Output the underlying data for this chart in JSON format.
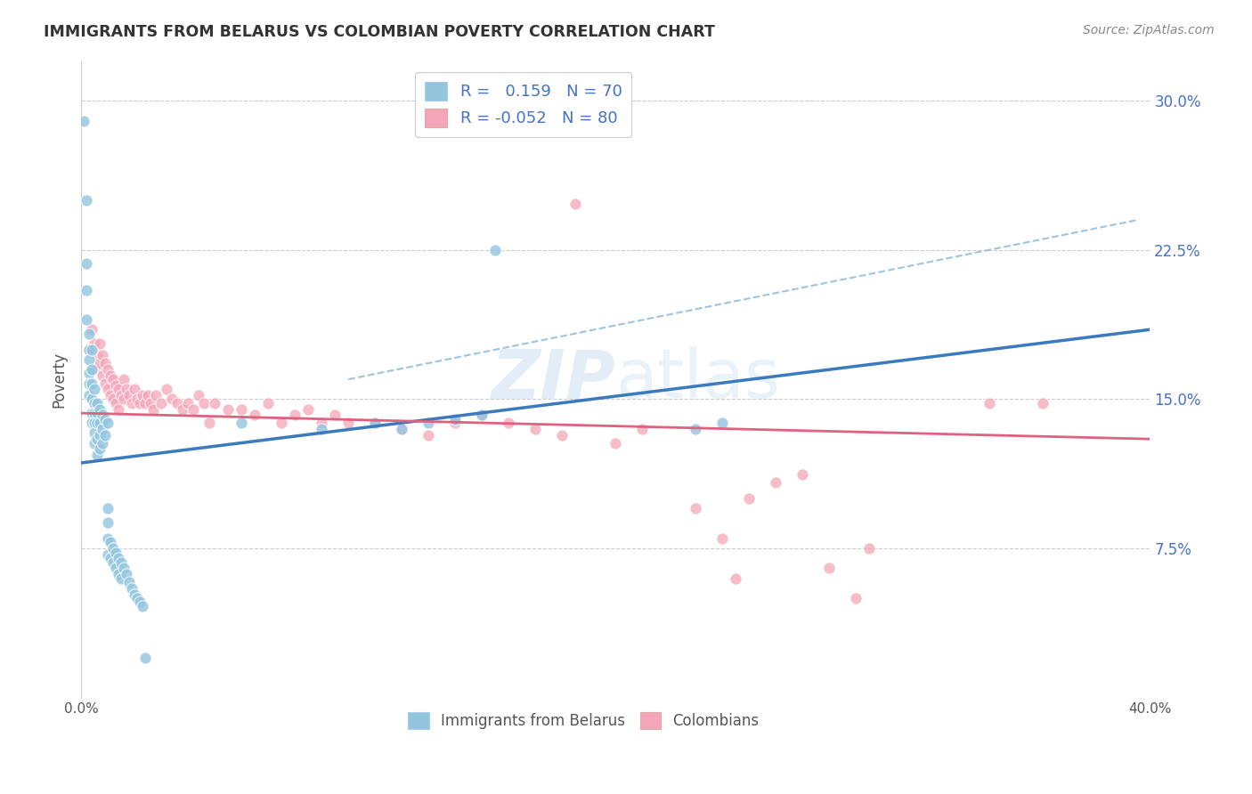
{
  "title": "IMMIGRANTS FROM BELARUS VS COLOMBIAN POVERTY CORRELATION CHART",
  "source": "Source: ZipAtlas.com",
  "ylabel": "Poverty",
  "yticks": [
    "7.5%",
    "15.0%",
    "22.5%",
    "30.0%"
  ],
  "ytick_vals": [
    0.075,
    0.15,
    0.225,
    0.3
  ],
  "xlim": [
    0.0,
    0.4
  ],
  "ylim": [
    0.0,
    0.32
  ],
  "color_blue": "#92c5de",
  "color_pink": "#f4a6b8",
  "line_blue": "#3a7abf",
  "line_pink": "#e06080",
  "line_dash_blue": "#9fc4e0",
  "watermark_zip": "ZIP",
  "watermark_atlas": "atlas",
  "belarus_dots": [
    [
      0.001,
      0.29
    ],
    [
      0.002,
      0.25
    ],
    [
      0.002,
      0.218
    ],
    [
      0.002,
      0.205
    ],
    [
      0.002,
      0.19
    ],
    [
      0.003,
      0.183
    ],
    [
      0.003,
      0.175
    ],
    [
      0.003,
      0.17
    ],
    [
      0.003,
      0.163
    ],
    [
      0.003,
      0.158
    ],
    [
      0.003,
      0.152
    ],
    [
      0.004,
      0.175
    ],
    [
      0.004,
      0.165
    ],
    [
      0.004,
      0.158
    ],
    [
      0.004,
      0.15
    ],
    [
      0.004,
      0.143
    ],
    [
      0.004,
      0.138
    ],
    [
      0.005,
      0.155
    ],
    [
      0.005,
      0.148
    ],
    [
      0.005,
      0.143
    ],
    [
      0.005,
      0.138
    ],
    [
      0.005,
      0.133
    ],
    [
      0.005,
      0.128
    ],
    [
      0.006,
      0.148
    ],
    [
      0.006,
      0.143
    ],
    [
      0.006,
      0.138
    ],
    [
      0.006,
      0.13
    ],
    [
      0.006,
      0.122
    ],
    [
      0.007,
      0.145
    ],
    [
      0.007,
      0.138
    ],
    [
      0.007,
      0.132
    ],
    [
      0.007,
      0.125
    ],
    [
      0.008,
      0.142
    ],
    [
      0.008,
      0.135
    ],
    [
      0.008,
      0.128
    ],
    [
      0.009,
      0.14
    ],
    [
      0.009,
      0.132
    ],
    [
      0.01,
      0.138
    ],
    [
      0.01,
      0.095
    ],
    [
      0.01,
      0.088
    ],
    [
      0.01,
      0.08
    ],
    [
      0.01,
      0.072
    ],
    [
      0.011,
      0.078
    ],
    [
      0.011,
      0.07
    ],
    [
      0.012,
      0.075
    ],
    [
      0.012,
      0.068
    ],
    [
      0.013,
      0.073
    ],
    [
      0.013,
      0.065
    ],
    [
      0.014,
      0.07
    ],
    [
      0.014,
      0.062
    ],
    [
      0.015,
      0.068
    ],
    [
      0.015,
      0.06
    ],
    [
      0.016,
      0.065
    ],
    [
      0.017,
      0.062
    ],
    [
      0.018,
      0.058
    ],
    [
      0.019,
      0.055
    ],
    [
      0.02,
      0.052
    ],
    [
      0.021,
      0.05
    ],
    [
      0.022,
      0.048
    ],
    [
      0.023,
      0.046
    ],
    [
      0.024,
      0.02
    ],
    [
      0.06,
      0.138
    ],
    [
      0.09,
      0.135
    ],
    [
      0.11,
      0.138
    ],
    [
      0.12,
      0.135
    ],
    [
      0.13,
      0.138
    ],
    [
      0.14,
      0.14
    ],
    [
      0.15,
      0.142
    ],
    [
      0.155,
      0.225
    ],
    [
      0.23,
      0.135
    ],
    [
      0.24,
      0.138
    ]
  ],
  "colombian_dots": [
    [
      0.003,
      0.175
    ],
    [
      0.004,
      0.185
    ],
    [
      0.005,
      0.178
    ],
    [
      0.006,
      0.172
    ],
    [
      0.006,
      0.165
    ],
    [
      0.007,
      0.178
    ],
    [
      0.007,
      0.168
    ],
    [
      0.008,
      0.172
    ],
    [
      0.008,
      0.162
    ],
    [
      0.009,
      0.168
    ],
    [
      0.009,
      0.158
    ],
    [
      0.01,
      0.165
    ],
    [
      0.01,
      0.155
    ],
    [
      0.011,
      0.162
    ],
    [
      0.011,
      0.152
    ],
    [
      0.012,
      0.16
    ],
    [
      0.012,
      0.15
    ],
    [
      0.013,
      0.157
    ],
    [
      0.013,
      0.148
    ],
    [
      0.014,
      0.155
    ],
    [
      0.014,
      0.145
    ],
    [
      0.015,
      0.152
    ],
    [
      0.016,
      0.16
    ],
    [
      0.016,
      0.15
    ],
    [
      0.017,
      0.155
    ],
    [
      0.018,
      0.152
    ],
    [
      0.019,
      0.148
    ],
    [
      0.02,
      0.155
    ],
    [
      0.021,
      0.15
    ],
    [
      0.022,
      0.148
    ],
    [
      0.023,
      0.152
    ],
    [
      0.024,
      0.148
    ],
    [
      0.025,
      0.152
    ],
    [
      0.026,
      0.148
    ],
    [
      0.027,
      0.145
    ],
    [
      0.028,
      0.152
    ],
    [
      0.03,
      0.148
    ],
    [
      0.032,
      0.155
    ],
    [
      0.034,
      0.15
    ],
    [
      0.036,
      0.148
    ],
    [
      0.038,
      0.145
    ],
    [
      0.04,
      0.148
    ],
    [
      0.042,
      0.145
    ],
    [
      0.044,
      0.152
    ],
    [
      0.046,
      0.148
    ],
    [
      0.048,
      0.138
    ],
    [
      0.05,
      0.148
    ],
    [
      0.055,
      0.145
    ],
    [
      0.06,
      0.145
    ],
    [
      0.065,
      0.142
    ],
    [
      0.07,
      0.148
    ],
    [
      0.075,
      0.138
    ],
    [
      0.08,
      0.142
    ],
    [
      0.085,
      0.145
    ],
    [
      0.09,
      0.138
    ],
    [
      0.095,
      0.142
    ],
    [
      0.1,
      0.138
    ],
    [
      0.11,
      0.138
    ],
    [
      0.12,
      0.135
    ],
    [
      0.13,
      0.132
    ],
    [
      0.14,
      0.138
    ],
    [
      0.15,
      0.142
    ],
    [
      0.16,
      0.138
    ],
    [
      0.17,
      0.135
    ],
    [
      0.18,
      0.132
    ],
    [
      0.185,
      0.248
    ],
    [
      0.2,
      0.128
    ],
    [
      0.21,
      0.135
    ],
    [
      0.23,
      0.095
    ],
    [
      0.24,
      0.08
    ],
    [
      0.245,
      0.06
    ],
    [
      0.25,
      0.1
    ],
    [
      0.26,
      0.108
    ],
    [
      0.27,
      0.112
    ],
    [
      0.28,
      0.065
    ],
    [
      0.29,
      0.05
    ],
    [
      0.295,
      0.075
    ],
    [
      0.34,
      0.148
    ],
    [
      0.36,
      0.148
    ]
  ],
  "blue_line_x": [
    0.0,
    0.4
  ],
  "blue_line_y": [
    0.118,
    0.185
  ],
  "pink_line_x": [
    0.0,
    0.4
  ],
  "pink_line_y": [
    0.143,
    0.13
  ],
  "dash_line_x": [
    0.1,
    0.395
  ],
  "dash_line_y": [
    0.16,
    0.24
  ]
}
